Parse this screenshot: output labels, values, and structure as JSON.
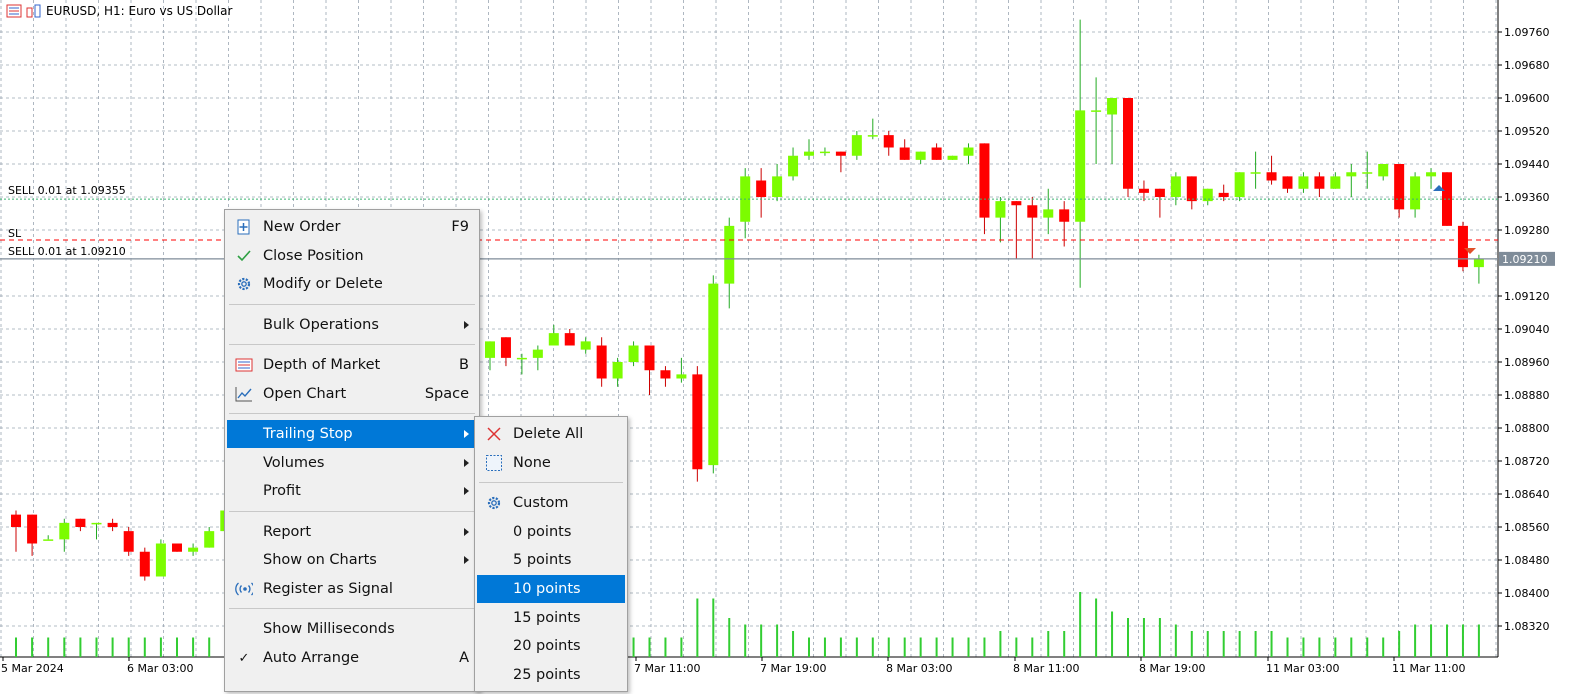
{
  "window": {
    "title": "EURUSD, H1:  Euro vs US Dollar"
  },
  "colors": {
    "bull": "#7cfc00",
    "bear": "#ff0000",
    "grid": "#9aa6b2",
    "volume": "#32cd32",
    "menu_highlight": "#0078d7",
    "sell_line": "#3cb371",
    "sl_line": "#ff0000"
  },
  "price_axis": {
    "labels": [
      "1.09760",
      "1.09680",
      "1.09600",
      "1.09520",
      "1.09440",
      "1.09360",
      "1.09280",
      "1.09120",
      "1.09040",
      "1.08960",
      "1.08880",
      "1.08800",
      "1.08720",
      "1.08640",
      "1.08560",
      "1.08480",
      "1.08400",
      "1.08320"
    ],
    "current_price": "1.09210"
  },
  "time_axis": {
    "labels": [
      "5 Mar 2024",
      "6 Mar 03:00",
      "7 Mar 11:00",
      "7 Mar 19:00",
      "8 Mar 03:00",
      "8 Mar 11:00",
      "8 Mar 19:00",
      "11 Mar 03:00",
      "11 Mar 11:00"
    ]
  },
  "trade_lines": {
    "sell1": "SELL 0.01 at 1.09355",
    "sl": "SL",
    "sell2": "SELL 0.01 at 1.09210"
  },
  "chart_data": {
    "type": "candlestick",
    "symbol": "EURUSD",
    "timeframe": "H1",
    "candles": [
      {
        "o": 1.0859,
        "h": 1.086,
        "l": 1.085,
        "c": 1.0856
      },
      {
        "o": 1.0859,
        "h": 1.0859,
        "l": 1.0849,
        "c": 1.0852
      },
      {
        "o": 1.0853,
        "h": 1.0854,
        "l": 1.0853,
        "c": 1.0853
      },
      {
        "o": 1.0853,
        "h": 1.0858,
        "l": 1.085,
        "c": 1.0857
      },
      {
        "o": 1.0858,
        "h": 1.0858,
        "l": 1.0855,
        "c": 1.0856
      },
      {
        "o": 1.0857,
        "h": 1.0857,
        "l": 1.0853,
        "c": 1.0857
      },
      {
        "o": 1.0857,
        "h": 1.0858,
        "l": 1.0855,
        "c": 1.0856
      },
      {
        "o": 1.0855,
        "h": 1.0856,
        "l": 1.0849,
        "c": 1.085
      },
      {
        "o": 1.085,
        "h": 1.0851,
        "l": 1.0843,
        "c": 1.0844
      },
      {
        "o": 1.0844,
        "h": 1.0853,
        "l": 1.0844,
        "c": 1.0852
      },
      {
        "o": 1.0852,
        "h": 1.0852,
        "l": 1.085,
        "c": 1.085
      },
      {
        "o": 1.085,
        "h": 1.0852,
        "l": 1.0849,
        "c": 1.0851
      },
      {
        "o": 1.0851,
        "h": 1.0856,
        "l": 1.0851,
        "c": 1.0855
      },
      {
        "o": 1.0855,
        "h": 1.0861,
        "l": 1.0855,
        "c": 1.086
      },
      {
        "o": 1.086,
        "h": 1.0864,
        "l": 1.0858,
        "c": 1.0862
      },
      {
        "o": 1.0897,
        "h": 1.0901,
        "l": 1.0894,
        "c": 1.0901
      },
      {
        "o": 1.0902,
        "h": 1.0902,
        "l": 1.0895,
        "c": 1.0897
      },
      {
        "o": 1.0897,
        "h": 1.0898,
        "l": 1.0893,
        "c": 1.0897
      },
      {
        "o": 1.0897,
        "h": 1.09,
        "l": 1.0894,
        "c": 1.0899
      },
      {
        "o": 1.09,
        "h": 1.0905,
        "l": 1.09,
        "c": 1.0903
      },
      {
        "o": 1.0903,
        "h": 1.0904,
        "l": 1.09,
        "c": 1.09
      },
      {
        "o": 1.0899,
        "h": 1.0902,
        "l": 1.0898,
        "c": 1.0901
      },
      {
        "o": 1.09,
        "h": 1.0902,
        "l": 1.089,
        "c": 1.0892
      },
      {
        "o": 1.0892,
        "h": 1.0897,
        "l": 1.089,
        "c": 1.0896
      },
      {
        "o": 1.0896,
        "h": 1.0901,
        "l": 1.0895,
        "c": 1.09
      },
      {
        "o": 1.09,
        "h": 1.09,
        "l": 1.0888,
        "c": 1.0894
      },
      {
        "o": 1.0894,
        "h": 1.0895,
        "l": 1.089,
        "c": 1.0892
      },
      {
        "o": 1.0892,
        "h": 1.0897,
        "l": 1.0891,
        "c": 1.0893
      },
      {
        "o": 1.0893,
        "h": 1.0895,
        "l": 1.0867,
        "c": 1.087
      },
      {
        "o": 1.0871,
        "h": 1.0917,
        "l": 1.0869,
        "c": 1.0915
      },
      {
        "o": 1.0915,
        "h": 1.0931,
        "l": 1.0909,
        "c": 1.0929
      },
      {
        "o": 1.093,
        "h": 1.0943,
        "l": 1.0926,
        "c": 1.0941
      },
      {
        "o": 1.094,
        "h": 1.0943,
        "l": 1.0931,
        "c": 1.0936
      },
      {
        "o": 1.0936,
        "h": 1.0944,
        "l": 1.0935,
        "c": 1.0941
      },
      {
        "o": 1.0941,
        "h": 1.0948,
        "l": 1.094,
        "c": 1.0946
      },
      {
        "o": 1.0946,
        "h": 1.095,
        "l": 1.0945,
        "c": 1.0947
      },
      {
        "o": 1.0947,
        "h": 1.0948,
        "l": 1.0946,
        "c": 1.0947
      },
      {
        "o": 1.0947,
        "h": 1.0947,
        "l": 1.0942,
        "c": 1.0946
      },
      {
        "o": 1.0946,
        "h": 1.0952,
        "l": 1.0945,
        "c": 1.0951
      },
      {
        "o": 1.0951,
        "h": 1.0955,
        "l": 1.095,
        "c": 1.0951
      },
      {
        "o": 1.0951,
        "h": 1.0952,
        "l": 1.0946,
        "c": 1.0948
      },
      {
        "o": 1.0948,
        "h": 1.095,
        "l": 1.0945,
        "c": 1.0945
      },
      {
        "o": 1.0945,
        "h": 1.0947,
        "l": 1.0944,
        "c": 1.0947
      },
      {
        "o": 1.0948,
        "h": 1.0949,
        "l": 1.0945,
        "c": 1.0945
      },
      {
        "o": 1.0945,
        "h": 1.0946,
        "l": 1.0945,
        "c": 1.0946
      },
      {
        "o": 1.0946,
        "h": 1.0949,
        "l": 1.0944,
        "c": 1.0948
      },
      {
        "o": 1.0949,
        "h": 1.0949,
        "l": 1.0927,
        "c": 1.0931
      },
      {
        "o": 1.0931,
        "h": 1.0936,
        "l": 1.0925,
        "c": 1.0935
      },
      {
        "o": 1.0935,
        "h": 1.0935,
        "l": 1.0921,
        "c": 1.0934
      },
      {
        "o": 1.0934,
        "h": 1.0936,
        "l": 1.0921,
        "c": 1.0931
      },
      {
        "o": 1.0931,
        "h": 1.0938,
        "l": 1.0927,
        "c": 1.0933
      },
      {
        "o": 1.0933,
        "h": 1.0935,
        "l": 1.0924,
        "c": 1.093
      },
      {
        "o": 1.093,
        "h": 1.0979,
        "l": 1.0914,
        "c": 1.0957
      },
      {
        "o": 1.0957,
        "h": 1.0965,
        "l": 1.0944,
        "c": 1.0957
      },
      {
        "o": 1.0956,
        "h": 1.096,
        "l": 1.0944,
        "c": 1.096
      },
      {
        "o": 1.096,
        "h": 1.096,
        "l": 1.0936,
        "c": 1.0938
      },
      {
        "o": 1.0938,
        "h": 1.094,
        "l": 1.0935,
        "c": 1.0937
      },
      {
        "o": 1.0938,
        "h": 1.0938,
        "l": 1.0931,
        "c": 1.0936
      },
      {
        "o": 1.0936,
        "h": 1.0942,
        "l": 1.0934,
        "c": 1.0941
      },
      {
        "o": 1.0941,
        "h": 1.0941,
        "l": 1.0933,
        "c": 1.0935
      },
      {
        "o": 1.0935,
        "h": 1.0938,
        "l": 1.0934,
        "c": 1.0938
      },
      {
        "o": 1.0937,
        "h": 1.0939,
        "l": 1.0935,
        "c": 1.0936
      },
      {
        "o": 1.0936,
        "h": 1.0942,
        "l": 1.0935,
        "c": 1.0942
      },
      {
        "o": 1.0942,
        "h": 1.0947,
        "l": 1.0938,
        "c": 1.0942
      },
      {
        "o": 1.0942,
        "h": 1.0946,
        "l": 1.0939,
        "c": 1.094
      },
      {
        "o": 1.0941,
        "h": 1.0941,
        "l": 1.0937,
        "c": 1.0938
      },
      {
        "o": 1.0938,
        "h": 1.0942,
        "l": 1.0937,
        "c": 1.0941
      },
      {
        "o": 1.0941,
        "h": 1.0942,
        "l": 1.0936,
        "c": 1.0938
      },
      {
        "o": 1.0938,
        "h": 1.0942,
        "l": 1.0938,
        "c": 1.0941
      },
      {
        "o": 1.0941,
        "h": 1.0944,
        "l": 1.0936,
        "c": 1.0942
      },
      {
        "o": 1.0942,
        "h": 1.0947,
        "l": 1.0938,
        "c": 1.0942
      },
      {
        "o": 1.0941,
        "h": 1.0944,
        "l": 1.094,
        "c": 1.0944
      },
      {
        "o": 1.0944,
        "h": 1.0944,
        "l": 1.0931,
        "c": 1.0933
      },
      {
        "o": 1.0933,
        "h": 1.0942,
        "l": 1.0931,
        "c": 1.0941
      },
      {
        "o": 1.0941,
        "h": 1.0943,
        "l": 1.0938,
        "c": 1.0942
      },
      {
        "o": 1.0942,
        "h": 1.0942,
        "l": 1.0929,
        "c": 1.0929
      },
      {
        "o": 1.0929,
        "h": 1.093,
        "l": 1.0918,
        "c": 1.0919
      },
      {
        "o": 1.0919,
        "h": 1.0922,
        "l": 1.0915,
        "c": 1.0921
      }
    ],
    "volumes": [
      3,
      3,
      3,
      3,
      3,
      3,
      3,
      3,
      3,
      3,
      3,
      3,
      3,
      3,
      3,
      3,
      3,
      3,
      3,
      3,
      3,
      3,
      3,
      3,
      3,
      3,
      3,
      3,
      9,
      9,
      6,
      5,
      5,
      5,
      4,
      3,
      3,
      3,
      3,
      3,
      3,
      3,
      3,
      3,
      3,
      3,
      3,
      4,
      3,
      3,
      4,
      4,
      10,
      9,
      7,
      6,
      6,
      6,
      5,
      4,
      4,
      4,
      4,
      4,
      4,
      3,
      3,
      3,
      3,
      3,
      3,
      3,
      4,
      5,
      5,
      5,
      5,
      5
    ]
  },
  "context_menu": {
    "items": [
      {
        "label": "New Order",
        "shortcut": "F9",
        "icon": "new-order-icon"
      },
      {
        "label": "Close Position",
        "icon": "checkmark-icon"
      },
      {
        "label": "Modify or Delete",
        "icon": "gear-icon"
      },
      {
        "label": "Bulk Operations",
        "submenu": true
      },
      {
        "label": "Depth of Market",
        "shortcut": "B",
        "icon": "depth-of-market-icon"
      },
      {
        "label": "Open Chart",
        "shortcut": "Space",
        "icon": "chart-line-icon"
      },
      {
        "label": "Trailing Stop",
        "submenu": true,
        "highlighted": true
      },
      {
        "label": "Volumes",
        "submenu": true
      },
      {
        "label": "Profit",
        "submenu": true
      },
      {
        "label": "Report",
        "submenu": true
      },
      {
        "label": "Show on Charts",
        "submenu": true
      },
      {
        "label": "Register as Signal",
        "icon": "signal-icon"
      },
      {
        "label": "Show Milliseconds"
      },
      {
        "label": "Auto Arrange",
        "shortcut": "A",
        "checked": true
      }
    ]
  },
  "trailing_submenu": {
    "items": [
      {
        "label": "Delete All",
        "icon": "delete-x-icon"
      },
      {
        "label": "None",
        "icon": "none-box-icon"
      },
      {
        "label": "Custom",
        "icon": "gear-icon"
      },
      {
        "label": "0 points"
      },
      {
        "label": "5 points"
      },
      {
        "label": "10 points",
        "highlighted": true
      },
      {
        "label": "15 points"
      },
      {
        "label": "20 points"
      },
      {
        "label": "25 points"
      }
    ]
  }
}
